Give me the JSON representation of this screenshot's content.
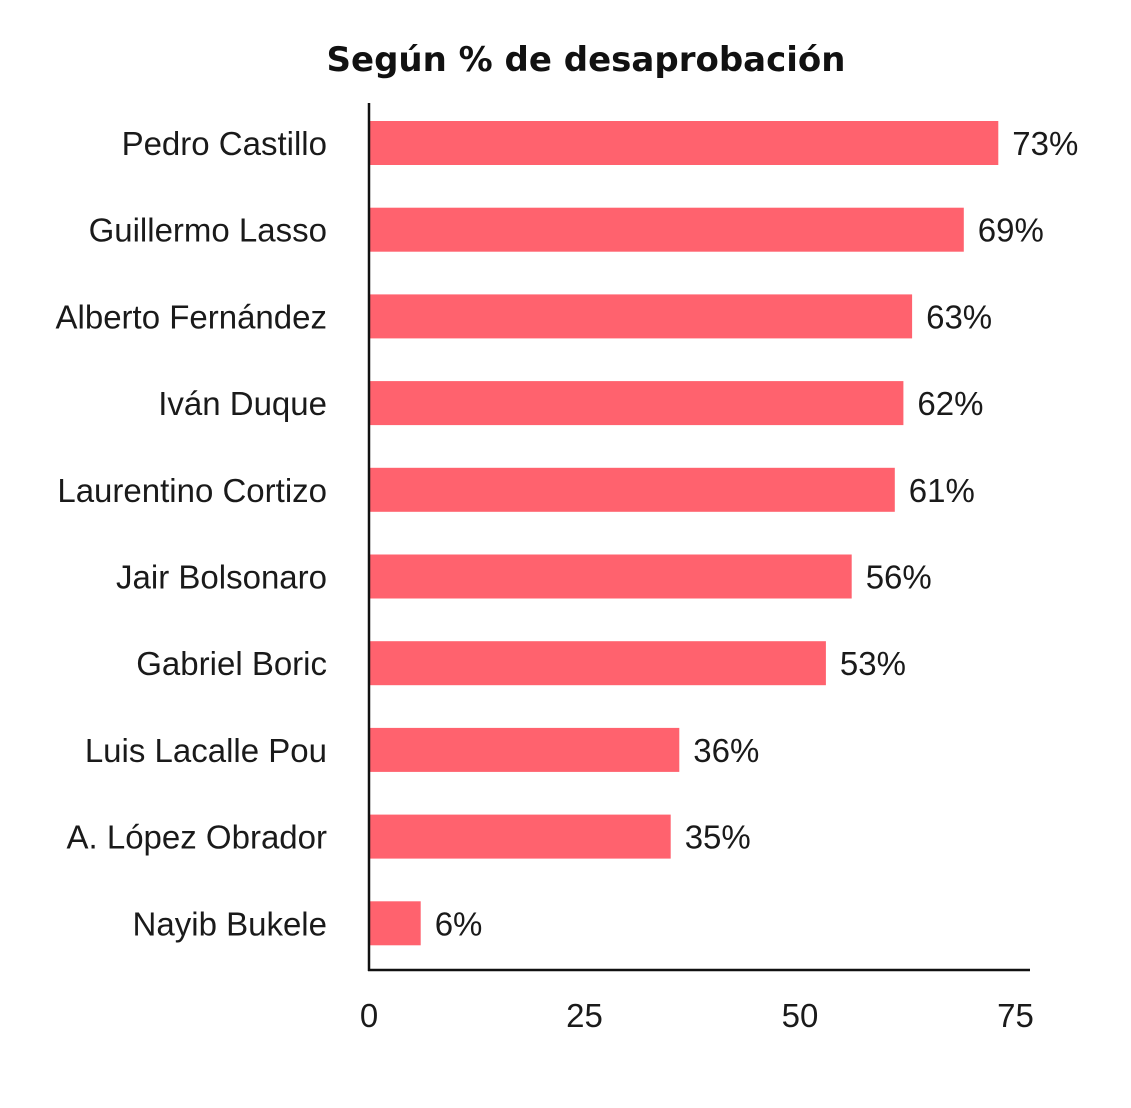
{
  "chart_data": {
    "type": "bar",
    "orientation": "horizontal",
    "title": "Según % de desaprobación",
    "xlabel": "",
    "ylabel": "",
    "categories": [
      "Pedro Castillo",
      "Guillermo Lasso",
      "Alberto Fernández",
      "Iván Duque",
      "Laurentino Cortizo",
      "Jair Bolsonaro",
      "Gabriel Boric",
      "Luis Lacalle Pou",
      "A. López Obrador",
      "Nayib Bukele"
    ],
    "values": [
      73,
      69,
      63,
      62,
      61,
      56,
      53,
      36,
      35,
      6
    ],
    "value_labels": [
      "73%",
      "69%",
      "63%",
      "62%",
      "61%",
      "56%",
      "53%",
      "36%",
      "35%",
      "6%"
    ],
    "xticks": [
      0,
      25,
      50,
      75
    ],
    "xtick_labels": [
      "0",
      "25",
      "50",
      "75"
    ],
    "xlim": [
      0,
      77
    ],
    "bar_color": "#ff626e",
    "grid": false,
    "legend": "none"
  }
}
